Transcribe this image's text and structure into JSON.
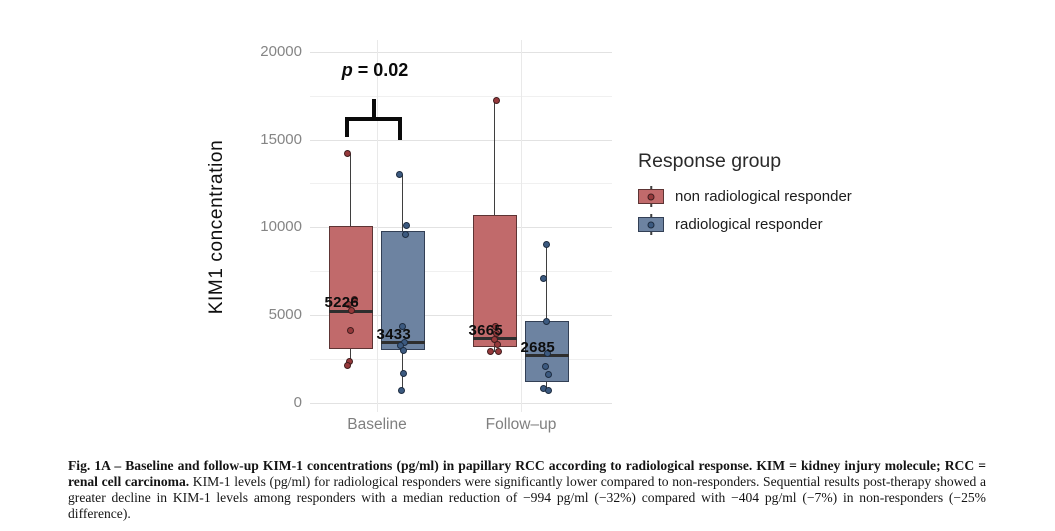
{
  "figure": {
    "caption_bold": "Fig. 1A – Baseline and follow-up KIM-1 concentrations (pg/ml) in papillary RCC according to radiological response. KIM = kidney injury molecule; RCC = renal cell carcinoma.",
    "caption_rest": " KIM-1 levels (pg/ml) for radiological responders were significantly lower compared to non-responders. Sequential results post-therapy showed a greater decline in KIM-1 levels among responders with a median reduction of −994 pg/ml (−32%) compared with −404 pg/ml (−7%) in non-responders (−25% difference)."
  },
  "chart_data": {
    "type": "boxplot",
    "title": "",
    "xlabel": "",
    "ylabel": "KIM1 concentration",
    "categories": [
      "Baseline",
      "Follow–up"
    ],
    "ylim": [
      0,
      20000
    ],
    "yticks": [
      0,
      5000,
      10000,
      15000,
      20000
    ],
    "ytick_labels": [
      "0",
      "5000",
      "10000",
      "15000",
      "20000"
    ],
    "grid": "major and minor horizontal gridlines, vertical gridline per category",
    "annotation": {
      "text": "p = 0.02",
      "italic_part": "p",
      "rest_part": " = 0.02",
      "compares": [
        "Baseline non radiological responder",
        "Baseline radiological responder"
      ]
    },
    "legend": {
      "title": "Response group",
      "position": "right",
      "entries": [
        {
          "label": "non radiological responder",
          "color": "#c16a6b"
        },
        {
          "label": "radiological responder",
          "color": "#6d83a1"
        }
      ]
    },
    "series": [
      {
        "name": "non radiological responder",
        "fill": "#c16a6b",
        "stroke": "#5d3434",
        "point_fill": "#96393b",
        "point_stroke": "#401d1e",
        "boxes": [
          {
            "category": "Baseline",
            "median": 5226,
            "median_label": "5226",
            "q1": 3100,
            "q3": 10100,
            "whisker_low": 2300,
            "whisker_high": 14200,
            "points": [
              {
                "v": 14200,
                "dx": -3
              },
              {
                "v": 5900,
                "dx": 4
              },
              {
                "v": 5600,
                "dx": -2
              },
              {
                "v": 5250,
                "dx": 1
              },
              {
                "v": 4100,
                "dx": 0
              },
              {
                "v": 2350,
                "dx": -1
              },
              {
                "v": 2150,
                "dx": -3
              }
            ]
          },
          {
            "category": "Follow–up",
            "median": 3665,
            "median_label": "3665",
            "q1": 3200,
            "q3": 10700,
            "whisker_low": 2900,
            "whisker_high": 17250,
            "points": [
              {
                "v": 17250,
                "dx": 2
              },
              {
                "v": 4370,
                "dx": 1
              },
              {
                "v": 3950,
                "dx": 2
              },
              {
                "v": 3600,
                "dx": 0
              },
              {
                "v": 3350,
                "dx": 3
              },
              {
                "v": 2950,
                "dx": -4
              },
              {
                "v": 2920,
                "dx": 4
              }
            ]
          }
        ]
      },
      {
        "name": "radiological responder",
        "fill": "#6d83a1",
        "stroke": "#323f55",
        "point_fill": "#3c5a80",
        "point_stroke": "#1d2c40",
        "boxes": [
          {
            "category": "Baseline",
            "median": 3433,
            "median_label": "3433",
            "q1": 3000,
            "q3": 9800,
            "whisker_low": 700,
            "whisker_high": 13000,
            "points": [
              {
                "v": 13000,
                "dx": -3
              },
              {
                "v": 10100,
                "dx": 4
              },
              {
                "v": 9600,
                "dx": 3
              },
              {
                "v": 4350,
                "dx": 0
              },
              {
                "v": 3450,
                "dx": 2
              },
              {
                "v": 3250,
                "dx": -2
              },
              {
                "v": 3000,
                "dx": 1
              },
              {
                "v": 1700,
                "dx": 1
              },
              {
                "v": 700,
                "dx": -1
              }
            ]
          },
          {
            "category": "Follow–up",
            "median": 2685,
            "median_label": "2685",
            "q1": 1200,
            "q3": 4650,
            "whisker_low": 750,
            "whisker_high": 9000,
            "points": [
              {
                "v": 9000,
                "dx": 0
              },
              {
                "v": 7100,
                "dx": -3
              },
              {
                "v": 4650,
                "dx": 0
              },
              {
                "v": 2800,
                "dx": 1
              },
              {
                "v": 2100,
                "dx": -1
              },
              {
                "v": 1600,
                "dx": 2
              },
              {
                "v": 820,
                "dx": -3
              },
              {
                "v": 700,
                "dx": 2
              }
            ]
          }
        ]
      }
    ]
  }
}
